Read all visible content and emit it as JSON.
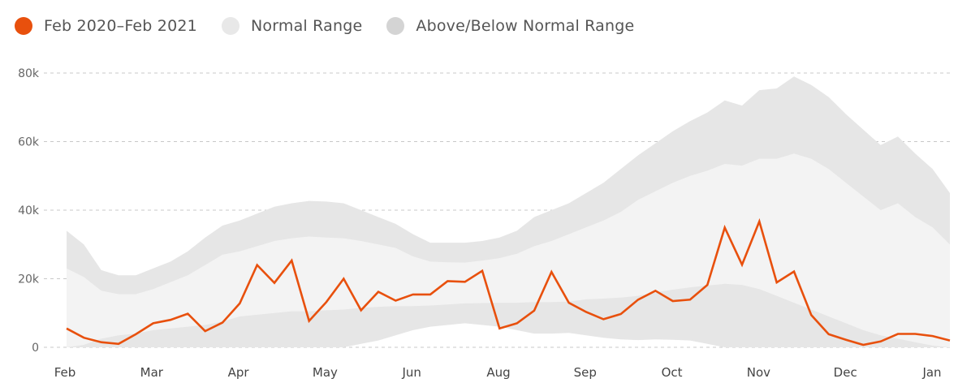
{
  "legend": {
    "series": "Feb 2020–Feb 2021",
    "normal": "Normal Range",
    "extreme": "Above/Below Normal Range"
  },
  "colors": {
    "series": "#e8500d",
    "normal_band": "#f3f3f3",
    "extreme_band": "#e6e6e6",
    "legend_normal": "#e8e8e8",
    "legend_extreme": "#d4d4d4",
    "grid": "#c8c8c8"
  },
  "chart_data": {
    "type": "line",
    "title": "",
    "xlabel": "",
    "ylabel": "",
    "ylim": [
      0,
      80000
    ],
    "yticks": [
      0,
      20000,
      40000,
      60000,
      80000
    ],
    "ytick_labels": [
      "0",
      "20k",
      "40k",
      "60k",
      "80k"
    ],
    "grid": "horizontal dashed",
    "legend_position": "top-left",
    "months": [
      "Feb",
      "Mar",
      "Apr",
      "May",
      "Jun",
      "Aug",
      "Sep",
      "Oct",
      "Nov",
      "Dec",
      "Jan"
    ],
    "series": [
      {
        "name": "Feb 2020–Feb 2021",
        "values": [
          5500,
          2800,
          1500,
          1000,
          3800,
          7000,
          8000,
          9800,
          4700,
          7200,
          12800,
          24000,
          18800,
          25300,
          7700,
          13200,
          20000,
          10800,
          16200,
          13600,
          15400,
          15400,
          19300,
          19100,
          22300,
          5500,
          7000,
          10700,
          22000,
          13000,
          10300,
          8200,
          9700,
          13900,
          16500,
          13500,
          13900,
          18200,
          34900,
          24100,
          36700,
          18900,
          22100,
          9400,
          3800,
          2200,
          700,
          1700,
          3900,
          3900,
          3300,
          2000
        ]
      }
    ],
    "normal_range": {
      "upper": [
        23000,
        20500,
        16500,
        15500,
        15500,
        17000,
        19000,
        21000,
        24000,
        27000,
        28000,
        29500,
        31000,
        31800,
        32300,
        32000,
        31800,
        31000,
        30000,
        29000,
        26500,
        25000,
        24800,
        24700,
        25300,
        26000,
        27300,
        29500,
        31000,
        33000,
        35000,
        37000,
        39500,
        43000,
        45500,
        48000,
        50000,
        51500,
        53500,
        53000,
        55000,
        55000,
        56500,
        55000,
        52000,
        48000,
        44000,
        40000,
        42000,
        38000,
        35000,
        30000
      ],
      "lower": [
        0,
        700,
        2500,
        3500,
        4000,
        5000,
        5500,
        6000,
        6500,
        7500,
        9000,
        9500,
        10000,
        10500,
        10500,
        10800,
        11000,
        11500,
        11800,
        12000,
        12000,
        12200,
        12500,
        12800,
        12900,
        13000,
        13000,
        13200,
        13200,
        13300,
        14000,
        14200,
        14500,
        15000,
        16000,
        16800,
        17500,
        18000,
        18500,
        18200,
        17000,
        15000,
        13000,
        11000,
        9000,
        7000,
        5000,
        3500,
        2500,
        1500,
        500,
        0
      ]
    },
    "extreme_range": {
      "upper": [
        34000,
        30000,
        22500,
        21000,
        21000,
        23000,
        25000,
        28000,
        32000,
        35500,
        37000,
        39000,
        41000,
        42000,
        42700,
        42500,
        42000,
        40000,
        38000,
        36000,
        33000,
        30500,
        30500,
        30500,
        31000,
        32000,
        34000,
        38000,
        40000,
        42000,
        45000,
        48000,
        52000,
        56000,
        59500,
        63000,
        66000,
        68500,
        72000,
        70500,
        75000,
        75500,
        79000,
        76500,
        73000,
        68000,
        63500,
        59000,
        61500,
        56500,
        52000,
        45000
      ],
      "lower": [
        0,
        0,
        0,
        0,
        0,
        0,
        0,
        0,
        0,
        0,
        0,
        0,
        0,
        0,
        0,
        0,
        0,
        1000,
        2000,
        3500,
        5000,
        6000,
        6500,
        7000,
        6500,
        6000,
        5000,
        4000,
        4000,
        4200,
        3500,
        2800,
        2300,
        2100,
        2300,
        2200,
        2000,
        1000,
        0,
        0,
        0,
        0,
        0,
        0,
        0,
        0,
        0,
        0,
        0,
        0,
        0,
        0
      ]
    }
  }
}
